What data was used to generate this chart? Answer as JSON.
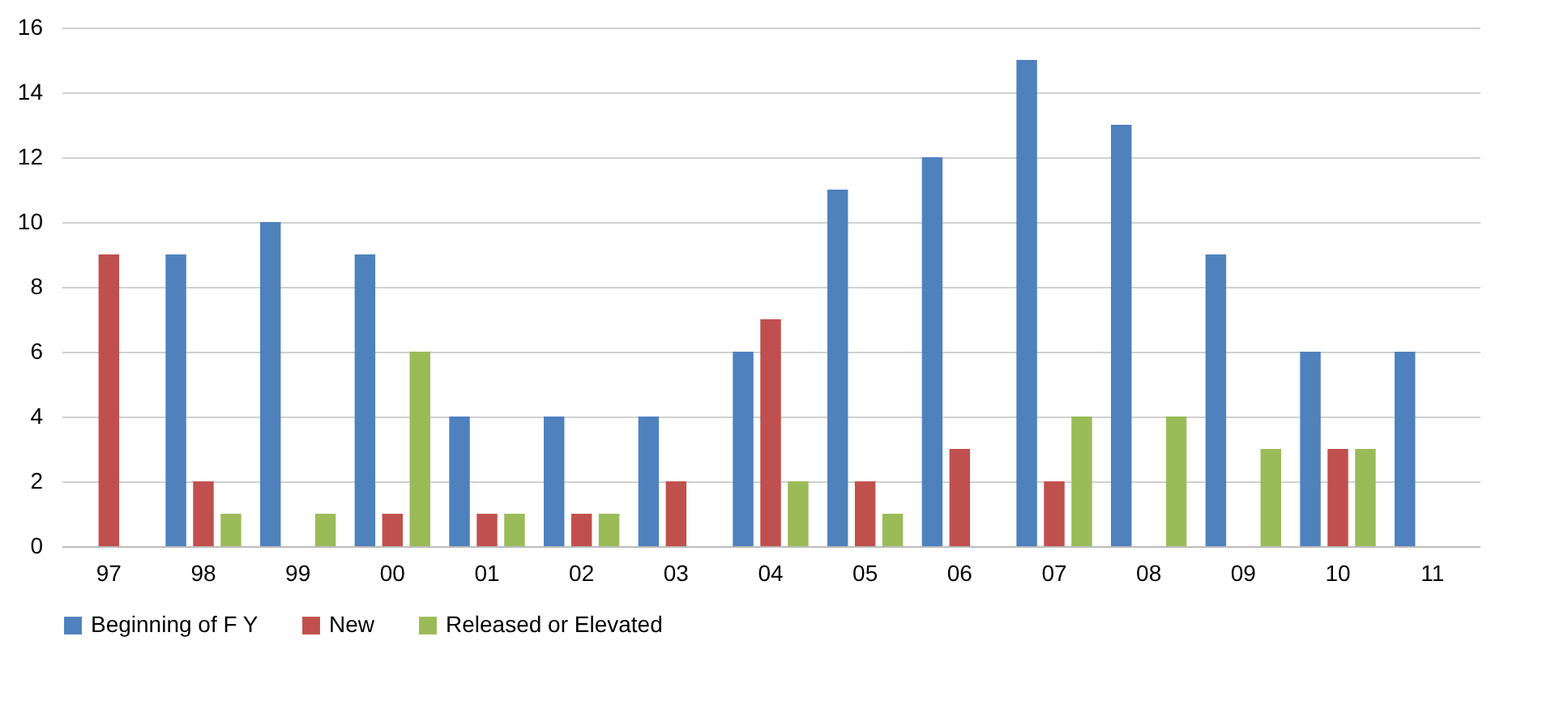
{
  "chart_data": {
    "type": "bar",
    "categories": [
      "97",
      "98",
      "99",
      "00",
      "01",
      "02",
      "03",
      "04",
      "05",
      "06",
      "07",
      "08",
      "09",
      "10",
      "11"
    ],
    "series": [
      {
        "name": "Beginning of F Y",
        "color": "#4f81bd",
        "values": [
          null,
          9,
          10,
          9,
          4,
          4,
          4,
          6,
          11,
          12,
          15,
          13,
          9,
          6,
          6
        ]
      },
      {
        "name": "New",
        "color": "#c0504d",
        "values": [
          9,
          2,
          null,
          1,
          1,
          1,
          2,
          7,
          2,
          3,
          2,
          null,
          null,
          3,
          null
        ]
      },
      {
        "name": "Released or Elevated",
        "color": "#9bbb59",
        "values": [
          null,
          1,
          1,
          6,
          1,
          1,
          null,
          2,
          1,
          null,
          4,
          4,
          3,
          3,
          null
        ]
      }
    ],
    "ylim": [
      0,
      16
    ],
    "yticks": [
      0,
      2,
      4,
      6,
      8,
      10,
      12,
      14,
      16
    ],
    "grid": "y",
    "legend": "bottom"
  }
}
